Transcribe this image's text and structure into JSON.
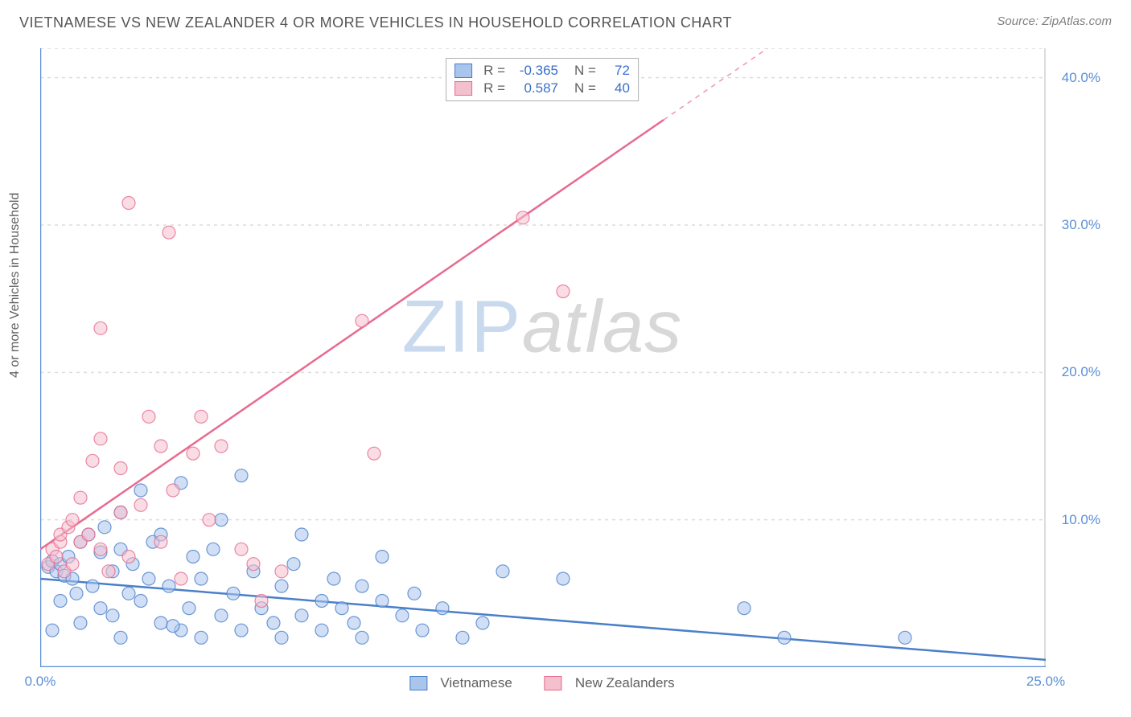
{
  "title": "VIETNAMESE VS NEW ZEALANDER 4 OR MORE VEHICLES IN HOUSEHOLD CORRELATION CHART",
  "source_label": "Source: ",
  "source_name": "ZipAtlas.com",
  "y_axis_label": "4 or more Vehicles in Household",
  "watermark_a": "ZIP",
  "watermark_b": "atlas",
  "chart": {
    "type": "scatter",
    "xlim": [
      0,
      25
    ],
    "ylim": [
      0,
      42
    ],
    "background_color": "#ffffff",
    "grid_color": "#dcdcdc",
    "axis_color": "#5a8fd6",
    "y_ticks": [
      10,
      20,
      30,
      40
    ],
    "y_tick_labels": [
      "10.0%",
      "20.0%",
      "30.0%",
      "40.0%"
    ],
    "x_ticks": [
      0,
      25
    ],
    "x_tick_labels": [
      "0.0%",
      "25.0%"
    ],
    "y_tick_fontsize": 17,
    "x_tick_fontsize": 17,
    "tick_color": "#5a8fd6",
    "marker_radius": 8,
    "marker_opacity": 0.55,
    "series": [
      {
        "name": "Vietnamese",
        "color_fill": "#a9c5ec",
        "color_stroke": "#4a7fc9",
        "R": "-0.365",
        "N": "72",
        "trend": {
          "x1": 0,
          "y1": 6.0,
          "x2": 25,
          "y2": 0.5,
          "dash_from_x": 25
        },
        "points": [
          [
            0.2,
            6.8
          ],
          [
            0.3,
            7.2
          ],
          [
            0.4,
            6.5
          ],
          [
            0.5,
            7.0
          ],
          [
            0.6,
            6.2
          ],
          [
            0.7,
            7.5
          ],
          [
            0.8,
            6.0
          ],
          [
            0.5,
            4.5
          ],
          [
            0.9,
            5.0
          ],
          [
            1.0,
            8.5
          ],
          [
            1.2,
            9.0
          ],
          [
            1.3,
            5.5
          ],
          [
            1.5,
            7.8
          ],
          [
            1.5,
            4.0
          ],
          [
            1.6,
            9.5
          ],
          [
            1.8,
            6.5
          ],
          [
            1.8,
            3.5
          ],
          [
            2.0,
            8.0
          ],
          [
            2.0,
            10.5
          ],
          [
            2.2,
            5.0
          ],
          [
            2.3,
            7.0
          ],
          [
            2.5,
            12.0
          ],
          [
            2.5,
            4.5
          ],
          [
            2.7,
            6.0
          ],
          [
            2.8,
            8.5
          ],
          [
            3.0,
            3.0
          ],
          [
            3.0,
            9.0
          ],
          [
            3.2,
            5.5
          ],
          [
            3.5,
            12.5
          ],
          [
            3.5,
            2.5
          ],
          [
            3.7,
            4.0
          ],
          [
            3.8,
            7.5
          ],
          [
            4.0,
            6.0
          ],
          [
            4.0,
            2.0
          ],
          [
            4.3,
            8.0
          ],
          [
            4.5,
            3.5
          ],
          [
            4.5,
            10.0
          ],
          [
            4.8,
            5.0
          ],
          [
            5.0,
            13.0
          ],
          [
            5.0,
            2.5
          ],
          [
            5.3,
            6.5
          ],
          [
            5.5,
            4.0
          ],
          [
            5.8,
            3.0
          ],
          [
            6.0,
            2.0
          ],
          [
            6.0,
            5.5
          ],
          [
            6.3,
            7.0
          ],
          [
            6.5,
            3.5
          ],
          [
            6.5,
            9.0
          ],
          [
            7.0,
            4.5
          ],
          [
            7.0,
            2.5
          ],
          [
            7.3,
            6.0
          ],
          [
            7.5,
            4.0
          ],
          [
            7.8,
            3.0
          ],
          [
            8.0,
            5.5
          ],
          [
            8.0,
            2.0
          ],
          [
            8.5,
            4.5
          ],
          [
            8.5,
            7.5
          ],
          [
            9.0,
            3.5
          ],
          [
            9.3,
            5.0
          ],
          [
            9.5,
            2.5
          ],
          [
            10.0,
            4.0
          ],
          [
            10.5,
            2.0
          ],
          [
            11.0,
            3.0
          ],
          [
            11.5,
            6.5
          ],
          [
            13.0,
            6.0
          ],
          [
            17.5,
            4.0
          ],
          [
            18.5,
            2.0
          ],
          [
            21.5,
            2.0
          ],
          [
            0.3,
            2.5
          ],
          [
            1.0,
            3.0
          ],
          [
            2.0,
            2.0
          ],
          [
            3.3,
            2.8
          ]
        ]
      },
      {
        "name": "New Zealanders",
        "color_fill": "#f4c0ce",
        "color_stroke": "#e76a8f",
        "R": "0.587",
        "N": "40",
        "trend": {
          "x1": 0,
          "y1": 8.0,
          "x2": 25,
          "y2": 55.0,
          "dash_from_x": 15.5
        },
        "points": [
          [
            0.2,
            7.0
          ],
          [
            0.3,
            8.0
          ],
          [
            0.4,
            7.5
          ],
          [
            0.5,
            8.5
          ],
          [
            0.5,
            9.0
          ],
          [
            0.6,
            6.5
          ],
          [
            0.7,
            9.5
          ],
          [
            0.8,
            10.0
          ],
          [
            0.8,
            7.0
          ],
          [
            1.0,
            8.5
          ],
          [
            1.0,
            11.5
          ],
          [
            1.2,
            9.0
          ],
          [
            1.3,
            14.0
          ],
          [
            1.5,
            8.0
          ],
          [
            1.5,
            15.5
          ],
          [
            1.5,
            23.0
          ],
          [
            1.7,
            6.5
          ],
          [
            2.0,
            10.5
          ],
          [
            2.0,
            13.5
          ],
          [
            2.2,
            7.5
          ],
          [
            2.2,
            31.5
          ],
          [
            2.5,
            11.0
          ],
          [
            2.7,
            17.0
          ],
          [
            3.0,
            8.5
          ],
          [
            3.0,
            15.0
          ],
          [
            3.2,
            29.5
          ],
          [
            3.3,
            12.0
          ],
          [
            3.5,
            6.0
          ],
          [
            3.8,
            14.5
          ],
          [
            4.0,
            17.0
          ],
          [
            4.2,
            10.0
          ],
          [
            4.5,
            15.0
          ],
          [
            5.0,
            8.0
          ],
          [
            5.3,
            7.0
          ],
          [
            5.5,
            4.5
          ],
          [
            6.0,
            6.5
          ],
          [
            8.0,
            23.5
          ],
          [
            8.3,
            14.5
          ],
          [
            12.0,
            30.5
          ],
          [
            13.0,
            25.5
          ]
        ]
      }
    ]
  },
  "stat_legend": {
    "R_label": "R =",
    "N_label": "N ="
  },
  "series_legend": {
    "items": [
      "Vietnamese",
      "New Zealanders"
    ]
  }
}
